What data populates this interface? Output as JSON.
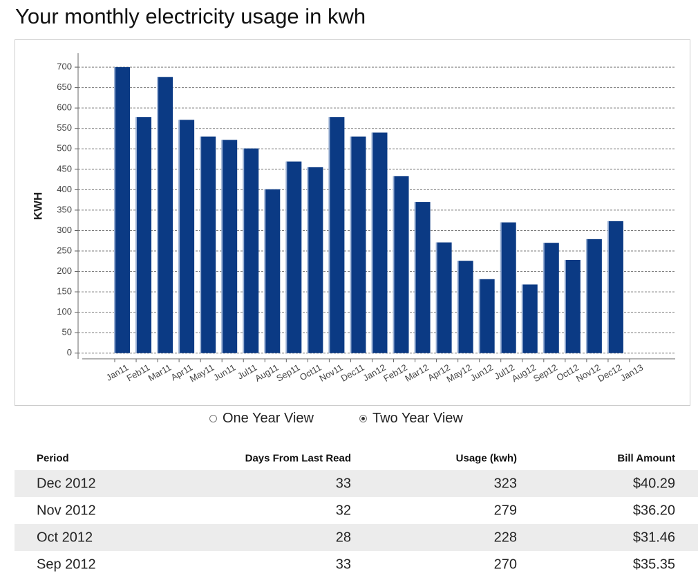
{
  "header": {
    "title": "Your monthly electricity usage in kwh"
  },
  "chart_data": {
    "type": "bar",
    "y_label": "KWH",
    "categories": [
      "Jan11",
      "Feb11",
      "Mar11",
      "Apr11",
      "May11",
      "Jun11",
      "Jul11",
      "Aug11",
      "Sep11",
      "Oct11",
      "Nov11",
      "Dec11",
      "Jan12",
      "Feb12",
      "Mar12",
      "Apr12",
      "May12",
      "Jun12",
      "Jul12",
      "Aug12",
      "Sep12",
      "Oct12",
      "Nov12",
      "Dec12",
      "Jan13"
    ],
    "values": [
      700,
      578,
      676,
      571,
      530,
      522,
      501,
      401,
      469,
      455,
      578,
      530,
      540,
      433,
      370,
      271,
      226,
      181,
      320,
      168,
      270,
      228,
      279,
      323,
      null
    ],
    "color": "#0b3a84",
    "ylim": [
      -14,
      734
    ],
    "yticks": [
      0,
      50,
      100,
      150,
      200,
      250,
      300,
      350,
      400,
      450,
      500,
      550,
      600,
      650,
      700
    ],
    "grid": true
  },
  "view_options": {
    "options": [
      "One Year View",
      "Two Year View"
    ],
    "selected": 1
  },
  "table": {
    "columns": [
      "Period",
      "Days From Last Read",
      "Usage (kwh)",
      "Bill Amount"
    ],
    "rows": [
      [
        "Dec 2012",
        "33",
        "323",
        "$40.29"
      ],
      [
        "Nov 2012",
        "32",
        "279",
        "$36.20"
      ],
      [
        "Oct 2012",
        "28",
        "228",
        "$31.46"
      ],
      [
        "Sep 2012",
        "33",
        "270",
        "$35.35"
      ]
    ]
  }
}
